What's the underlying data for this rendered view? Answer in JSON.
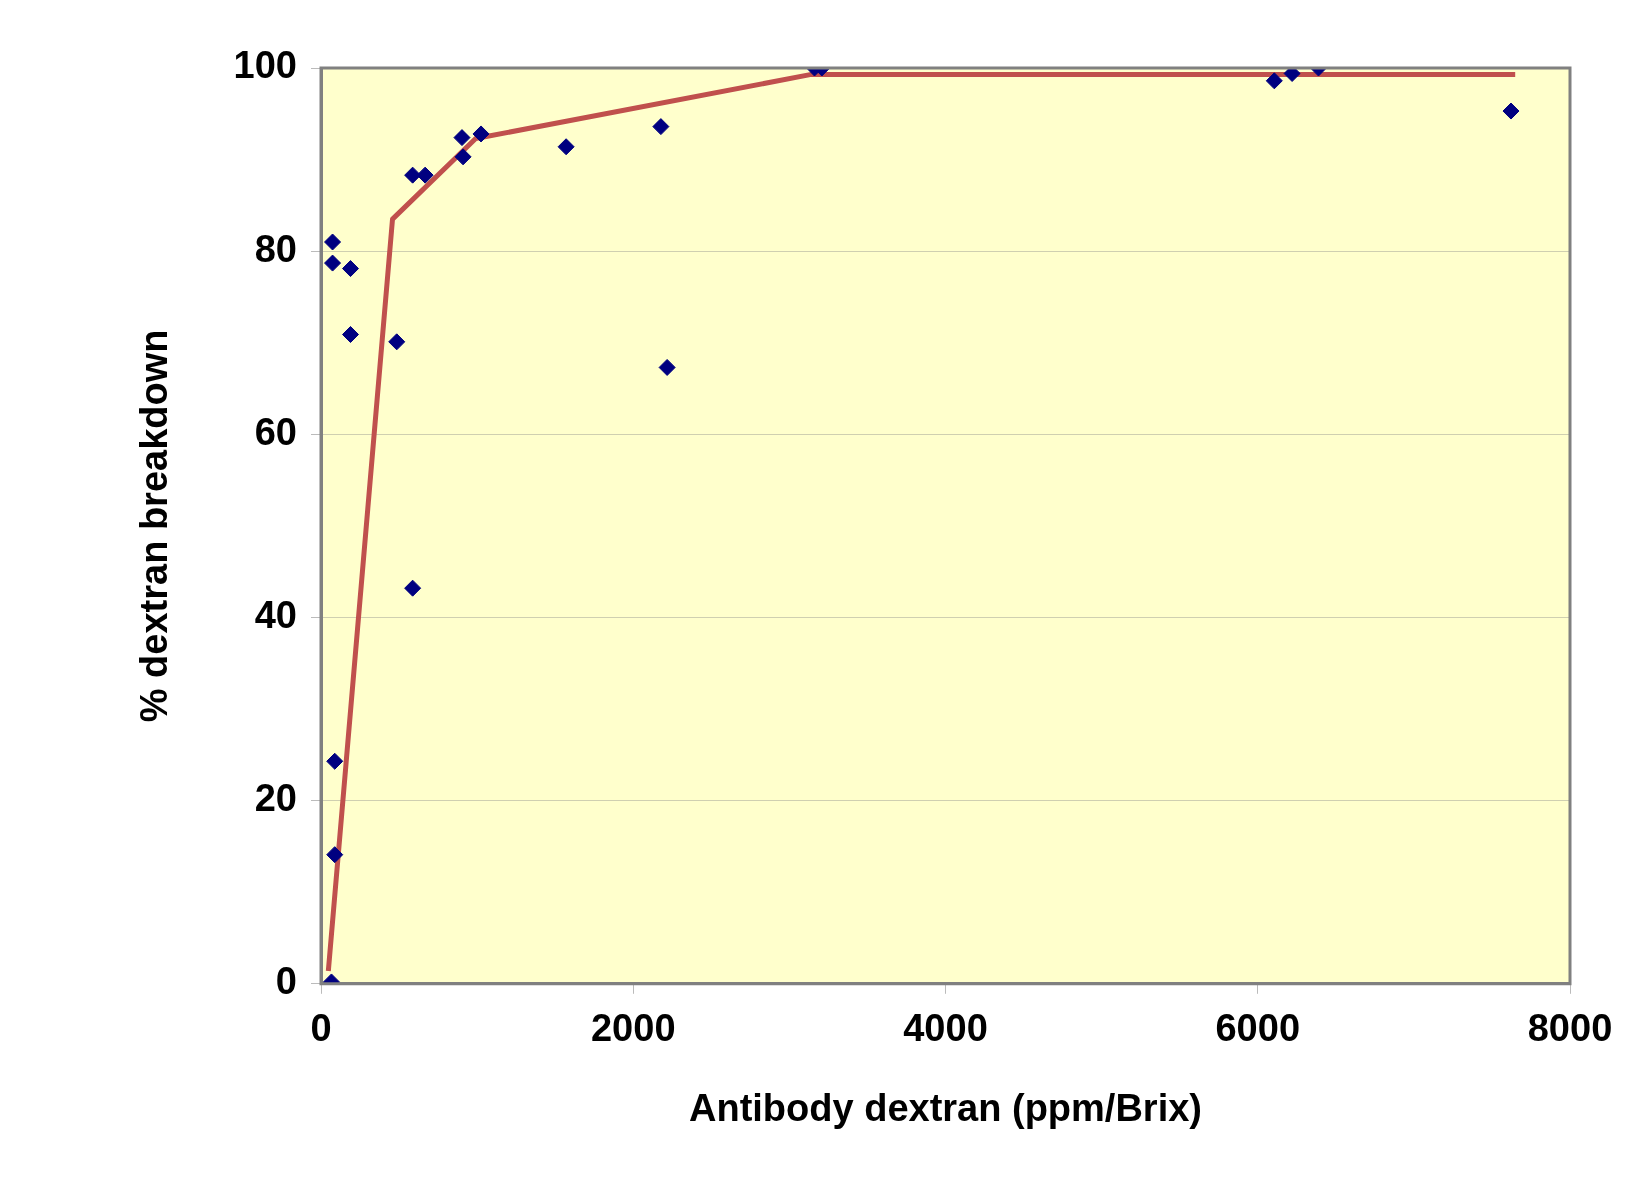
{
  "chart_data": {
    "type": "scatter",
    "xlabel": "Antibody dextran (ppm/Brix)",
    "ylabel": "% dextran breakdown",
    "xlim": [
      0,
      8000
    ],
    "xticks": [
      0,
      2000,
      4000,
      6000,
      8000
    ],
    "ylim": [
      0,
      100
    ],
    "yticks": [
      0,
      20,
      40,
      60,
      80,
      100
    ],
    "grid": "y",
    "legend": false,
    "marker": "diamond",
    "series": [
      {
        "color": "#000080",
        "x": [
          74,
          74,
          189,
          189,
          485,
          587,
          667,
          903,
          910,
          1025,
          1570,
          2177,
          2217,
          587,
          88,
          88,
          67,
          3161,
          3208,
          6106,
          6220,
          6389,
          7622
        ],
        "values": [
          81.0,
          78.7,
          78.1,
          70.9,
          70.1,
          88.3,
          88.3,
          92.4,
          90.3,
          92.8,
          91.4,
          93.6,
          67.3,
          43.2,
          24.3,
          14.1,
          0.2,
          100,
          100,
          98.6,
          99.4,
          100,
          95.3
        ]
      },
      {
        "type": "line",
        "color": "#c0504d",
        "marker": "none",
        "x": [
          47,
          458,
          991,
          3141,
          7649
        ],
        "values": [
          1.4,
          83.5,
          92.3,
          99.3,
          99.3
        ]
      }
    ]
  }
}
